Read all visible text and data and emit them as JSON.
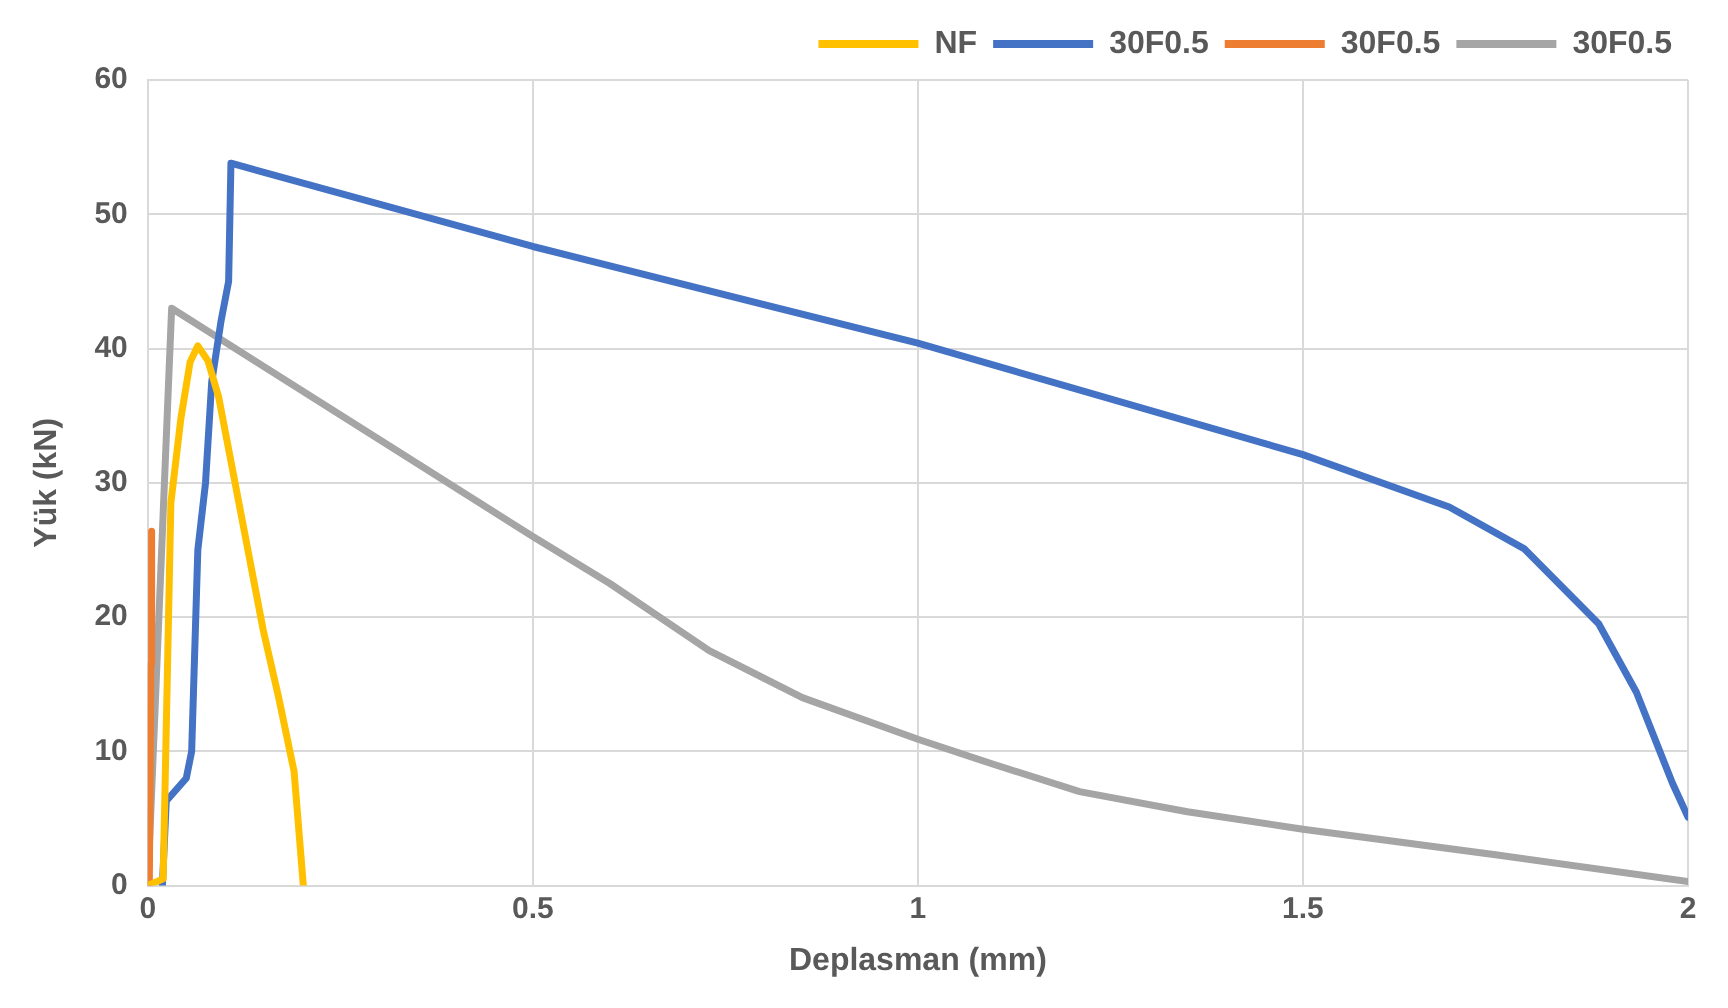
{
  "chart_data": {
    "type": "line",
    "xlabel": "Deplasman (mm)",
    "ylabel": "Yük (kN)",
    "xlim": [
      0,
      2
    ],
    "xticks": [
      0,
      0.5,
      1,
      1.5,
      2
    ],
    "ylim": [
      0,
      60
    ],
    "yticks": [
      0,
      10,
      20,
      30,
      40,
      50,
      60
    ],
    "grid": true,
    "legend": "top",
    "marker": "none",
    "line_style": "solid",
    "series": [
      {
        "name": "NF",
        "color": "#ffc000",
        "x": [
          0,
          0.02,
          0.03,
          0.043,
          0.055,
          0.065,
          0.078,
          0.092,
          0.12,
          0.15,
          0.17,
          0.19,
          0.202
        ],
        "values": [
          0,
          0.5,
          28.5,
          34.8,
          39,
          40.2,
          39.1,
          36.4,
          28,
          19,
          14,
          8.5,
          0
        ]
      },
      {
        "name": "30F0.5",
        "color": "#4472c4",
        "x": [
          0.019,
          0.024,
          0.05,
          0.057,
          0.065,
          0.075,
          0.083,
          0.095,
          0.105,
          0.108,
          0.5,
          1,
          1.5,
          1.69,
          1.787,
          1.884,
          1.933,
          1.98,
          2
        ],
        "values": [
          0,
          6.3,
          8,
          10,
          25,
          30,
          37.5,
          42,
          45,
          53.8,
          47.6,
          40.4,
          32.1,
          28.2,
          25.1,
          19.5,
          14.4,
          7.6,
          5.1
        ]
      },
      {
        "name": "30F0.5",
        "color": "#ed7d31",
        "x": [
          0.002,
          0.004,
          0.005
        ],
        "values": [
          0,
          16.5,
          26.4
        ]
      },
      {
        "name": "30F0.5",
        "color": "#a5a5a5",
        "x": [
          0,
          0.031,
          0.5,
          0.6,
          0.729,
          0.85,
          1,
          1.1,
          1.21,
          1.35,
          1.5,
          1.75,
          2
        ],
        "values": [
          0,
          43,
          26,
          22.5,
          17.5,
          14,
          10.9,
          9,
          7,
          5.5,
          4.2,
          2.3,
          0.3
        ]
      }
    ]
  }
}
